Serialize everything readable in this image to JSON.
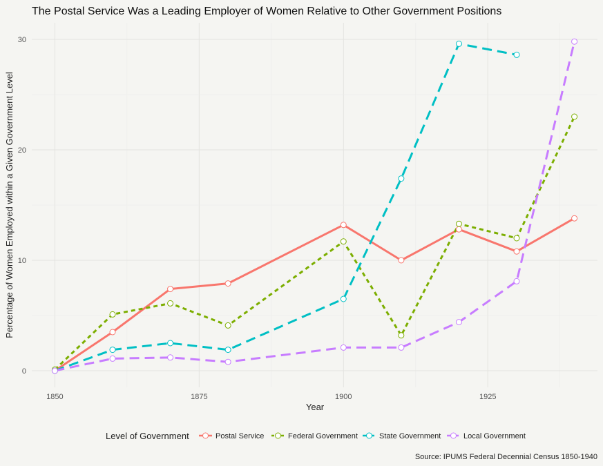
{
  "chart_data": {
    "type": "line",
    "title": "The Postal Service Was a Leading Employer of Women Relative to Other Government Positions",
    "xlabel": "Year",
    "ylabel": "Percentage of Women Employed within a Given Government Level",
    "xlim": [
      1846,
      1944
    ],
    "ylim": [
      -1.5,
      31.5
    ],
    "x_ticks": [
      1850,
      1875,
      1900,
      1925
    ],
    "y_ticks": [
      0,
      10,
      20,
      30
    ],
    "grid": true,
    "legend_title": "Level of Government",
    "legend_position": "bottom",
    "source": "Source: IPUMS Federal Decennial Census 1850-1940",
    "series": [
      {
        "name": "Postal Service",
        "color": "#f8766d",
        "dash": "solid",
        "x": [
          1850,
          1860,
          1870,
          1880,
          1900,
          1910,
          1920,
          1930,
          1940
        ],
        "values": [
          0,
          3.5,
          7.4,
          7.9,
          13.2,
          10.0,
          12.8,
          10.8,
          13.8
        ]
      },
      {
        "name": "Federal Government",
        "color": "#7cae00",
        "dash": "short",
        "x": [
          1850,
          1860,
          1870,
          1880,
          1900,
          1910,
          1920,
          1930,
          1940
        ],
        "values": [
          0.1,
          5.1,
          6.1,
          4.1,
          11.7,
          3.2,
          13.3,
          12.0,
          23.0
        ]
      },
      {
        "name": "State Government",
        "color": "#00bfc4",
        "dash": "long",
        "x": [
          1850,
          1860,
          1870,
          1880,
          1900,
          1910,
          1920,
          1930
        ],
        "values": [
          0,
          1.9,
          2.5,
          1.9,
          6.5,
          17.4,
          29.6,
          28.6
        ]
      },
      {
        "name": "Local Government",
        "color": "#c77cff",
        "dash": "long",
        "x": [
          1850,
          1860,
          1870,
          1880,
          1900,
          1910,
          1920,
          1930,
          1940
        ],
        "values": [
          0,
          1.1,
          1.2,
          0.8,
          2.1,
          2.1,
          4.4,
          8.1,
          29.8
        ]
      }
    ]
  }
}
